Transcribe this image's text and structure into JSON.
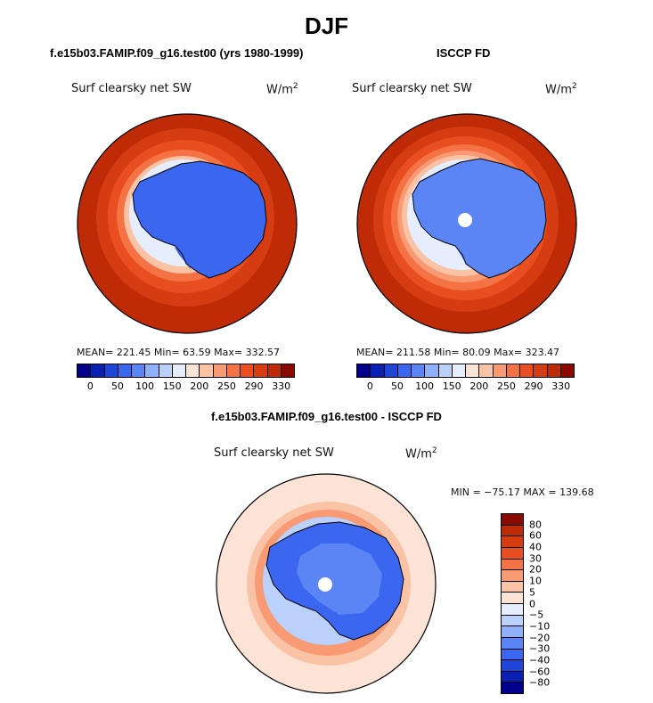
{
  "page_title": "DJF",
  "colors": {
    "abs_scale": [
      "#00008c",
      "#0a1fb4",
      "#1f46d8",
      "#3a66f0",
      "#5b85f5",
      "#8fb0fa",
      "#bcd0fc",
      "#e6eefe",
      "#fde3d6",
      "#fbc3a6",
      "#f89a73",
      "#f47244",
      "#e94e20",
      "#d63c12",
      "#be2b06",
      "#8b0a00"
    ],
    "diff_scale": [
      "#00008c",
      "#0a1fb4",
      "#1f46d8",
      "#3a66f0",
      "#5b85f5",
      "#8fb0fa",
      "#bcd0fc",
      "#e6eefe",
      "#fde3d6",
      "#fbc3a6",
      "#f89a73",
      "#f47244",
      "#e94e20",
      "#d63c12",
      "#be2b06",
      "#8b0a00"
    ]
  },
  "panels": {
    "model": {
      "heading": "f.e15b03.FAMIP.f09_g16.test00 (yrs 1980-1999)",
      "variable": "Surf clearsky net SW",
      "units": "W/m",
      "units_exp": "2",
      "stats": "MEAN= 221.45   Min=  63.59   Max= 332.57"
    },
    "obs": {
      "heading": "ISCCP FD",
      "variable": "Surf clearsky net SW",
      "units": "W/m",
      "units_exp": "2",
      "stats": "MEAN= 211.58   Min=  80.09   Max= 323.47"
    },
    "diff": {
      "heading": "f.e15b03.FAMIP.f09_g16.test00 - ISCCP FD",
      "variable": "Surf clearsky net SW",
      "units": "W/m",
      "units_exp": "2",
      "stats": "MIN = −75.17  MAX = 139.68"
    }
  },
  "chart_data": [
    {
      "type": "heatmap",
      "projection": "south-polar-stereographic",
      "title": "f.e15b03.FAMIP.f09_g16.test00 (yrs 1980-1999)",
      "subtitle": "Surf clearsky net SW",
      "units": "W/m2",
      "mean": 221.45,
      "min": 63.59,
      "max": 332.57,
      "colorbar_ticks": [
        "0",
        "50",
        "100",
        "150",
        "200",
        "250",
        "290",
        "330"
      ],
      "colorbar_orientation": "horizontal"
    },
    {
      "type": "heatmap",
      "projection": "south-polar-stereographic",
      "title": "ISCCP FD",
      "subtitle": "Surf clearsky net SW",
      "units": "W/m2",
      "mean": 211.58,
      "min": 80.09,
      "max": 323.47,
      "colorbar_ticks": [
        "0",
        "50",
        "100",
        "150",
        "200",
        "250",
        "290",
        "330"
      ],
      "colorbar_orientation": "horizontal"
    },
    {
      "type": "heatmap",
      "projection": "south-polar-stereographic",
      "title": "f.e15b03.FAMIP.f09_g16.test00 - ISCCP FD",
      "subtitle": "Surf clearsky net SW",
      "units": "W/m2",
      "min": -75.17,
      "max": 139.68,
      "colorbar_ticks": [
        "80",
        "60",
        "40",
        "30",
        "20",
        "10",
        "5",
        "0",
        "−5",
        "−10",
        "−20",
        "−30",
        "−40",
        "−60",
        "−80"
      ],
      "colorbar_orientation": "vertical"
    }
  ]
}
